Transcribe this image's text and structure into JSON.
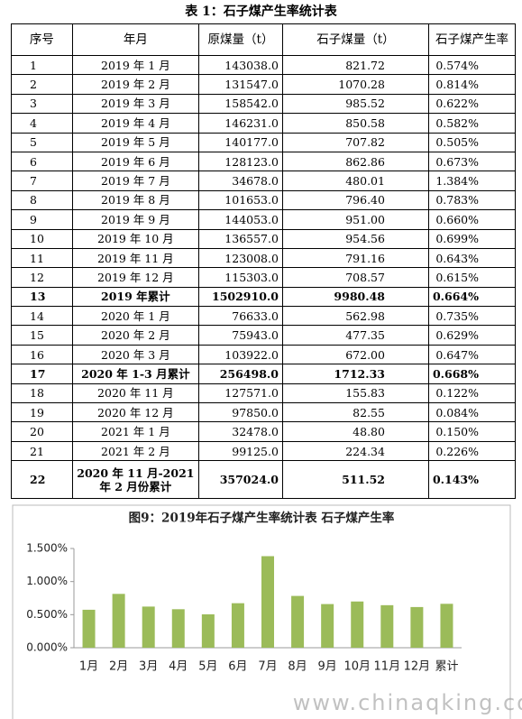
{
  "table": {
    "title": "表 1：石子煤产生率统计表",
    "headers": [
      "序号",
      "年月",
      "原煤量（t）",
      "石子煤量（t）",
      "石子煤产生率"
    ],
    "rows": [
      [
        "1",
        "2019 年 1 月",
        "143038.0",
        "821.72",
        "0.574%"
      ],
      [
        "2",
        "2019 年 2 月",
        "131547.0",
        "1070.28",
        "0.814%"
      ],
      [
        "3",
        "2019 年 3 月",
        "158542.0",
        "985.52",
        "0.622%"
      ],
      [
        "4",
        "2019 年 4 月",
        "146231.0",
        "850.58",
        "0.582%"
      ],
      [
        "5",
        "2019 年 5 月",
        "140177.0",
        "707.82",
        "0.505%"
      ],
      [
        "6",
        "2019 年 6 月",
        "128123.0",
        "862.86",
        "0.673%"
      ],
      [
        "7",
        "2019 年 7 月",
        "34678.0",
        "480.01",
        "1.384%"
      ],
      [
        "8",
        "2019 年 8 月",
        "101653.0",
        "796.40",
        "0.783%"
      ],
      [
        "9",
        "2019 年 9 月",
        "144053.0",
        "951.00",
        "0.660%"
      ],
      [
        "10",
        "2019 年 10 月",
        "136557.0",
        "954.56",
        "0.699%"
      ],
      [
        "11",
        "2019 年 11 月",
        "123008.0",
        "791.16",
        "0.643%"
      ],
      [
        "12",
        "2019 年 12 月",
        "115303.0",
        "708.57",
        "0.615%"
      ],
      [
        "13",
        "2019 年累计",
        "1502910.0",
        "9980.48",
        "0.664%"
      ],
      [
        "14",
        "2020 年 1 月",
        "76633.0",
        "562.98",
        "0.735%"
      ],
      [
        "15",
        "2020 年 2 月",
        "75943.0",
        "477.35",
        "0.629%"
      ],
      [
        "16",
        "2020 年 3 月",
        "103922.0",
        "672.00",
        "0.647%"
      ],
      [
        "17",
        "2020 年 1-3 月累计",
        "256498.0",
        "1712.33",
        "0.668%"
      ],
      [
        "18",
        "2020 年 11 月",
        "127571.0",
        "155.83",
        "0.122%"
      ],
      [
        "19",
        "2020 年 12 月",
        "97850.0",
        "82.55",
        "0.084%"
      ],
      [
        "20",
        "2021 年 1 月",
        "32478.0",
        "48.80",
        "0.150%"
      ],
      [
        "21",
        "2021 年 2 月",
        "99125.0",
        "224.34",
        "0.226%"
      ],
      [
        "22",
        "2020 年 11 月-2021 年 2 月份累计",
        "357024.0",
        "511.52",
        "0.143%"
      ]
    ]
  },
  "chart_data": {
    "type": "bar",
    "title": "图9：2019年石子煤产生率统计表 石子煤产生率",
    "categories": [
      "1月",
      "2月",
      "3月",
      "4月",
      "5月",
      "6月",
      "7月",
      "8月",
      "9月",
      "10月",
      "11月",
      "12月",
      "累计"
    ],
    "values": [
      0.574,
      0.814,
      0.622,
      0.582,
      0.505,
      0.673,
      1.384,
      0.783,
      0.66,
      0.699,
      0.643,
      0.615,
      0.664
    ],
    "color": "#9bbb59",
    "ylim": [
      0,
      1.5
    ],
    "yticks": [
      {
        "value": 0,
        "label": "0.000%"
      },
      {
        "value": 0.5,
        "label": "0.500%"
      },
      {
        "value": 1,
        "label": "1.000%"
      },
      {
        "value": 1.5,
        "label": "1.500%"
      }
    ]
  },
  "watermark": "www.chinaqking.com"
}
